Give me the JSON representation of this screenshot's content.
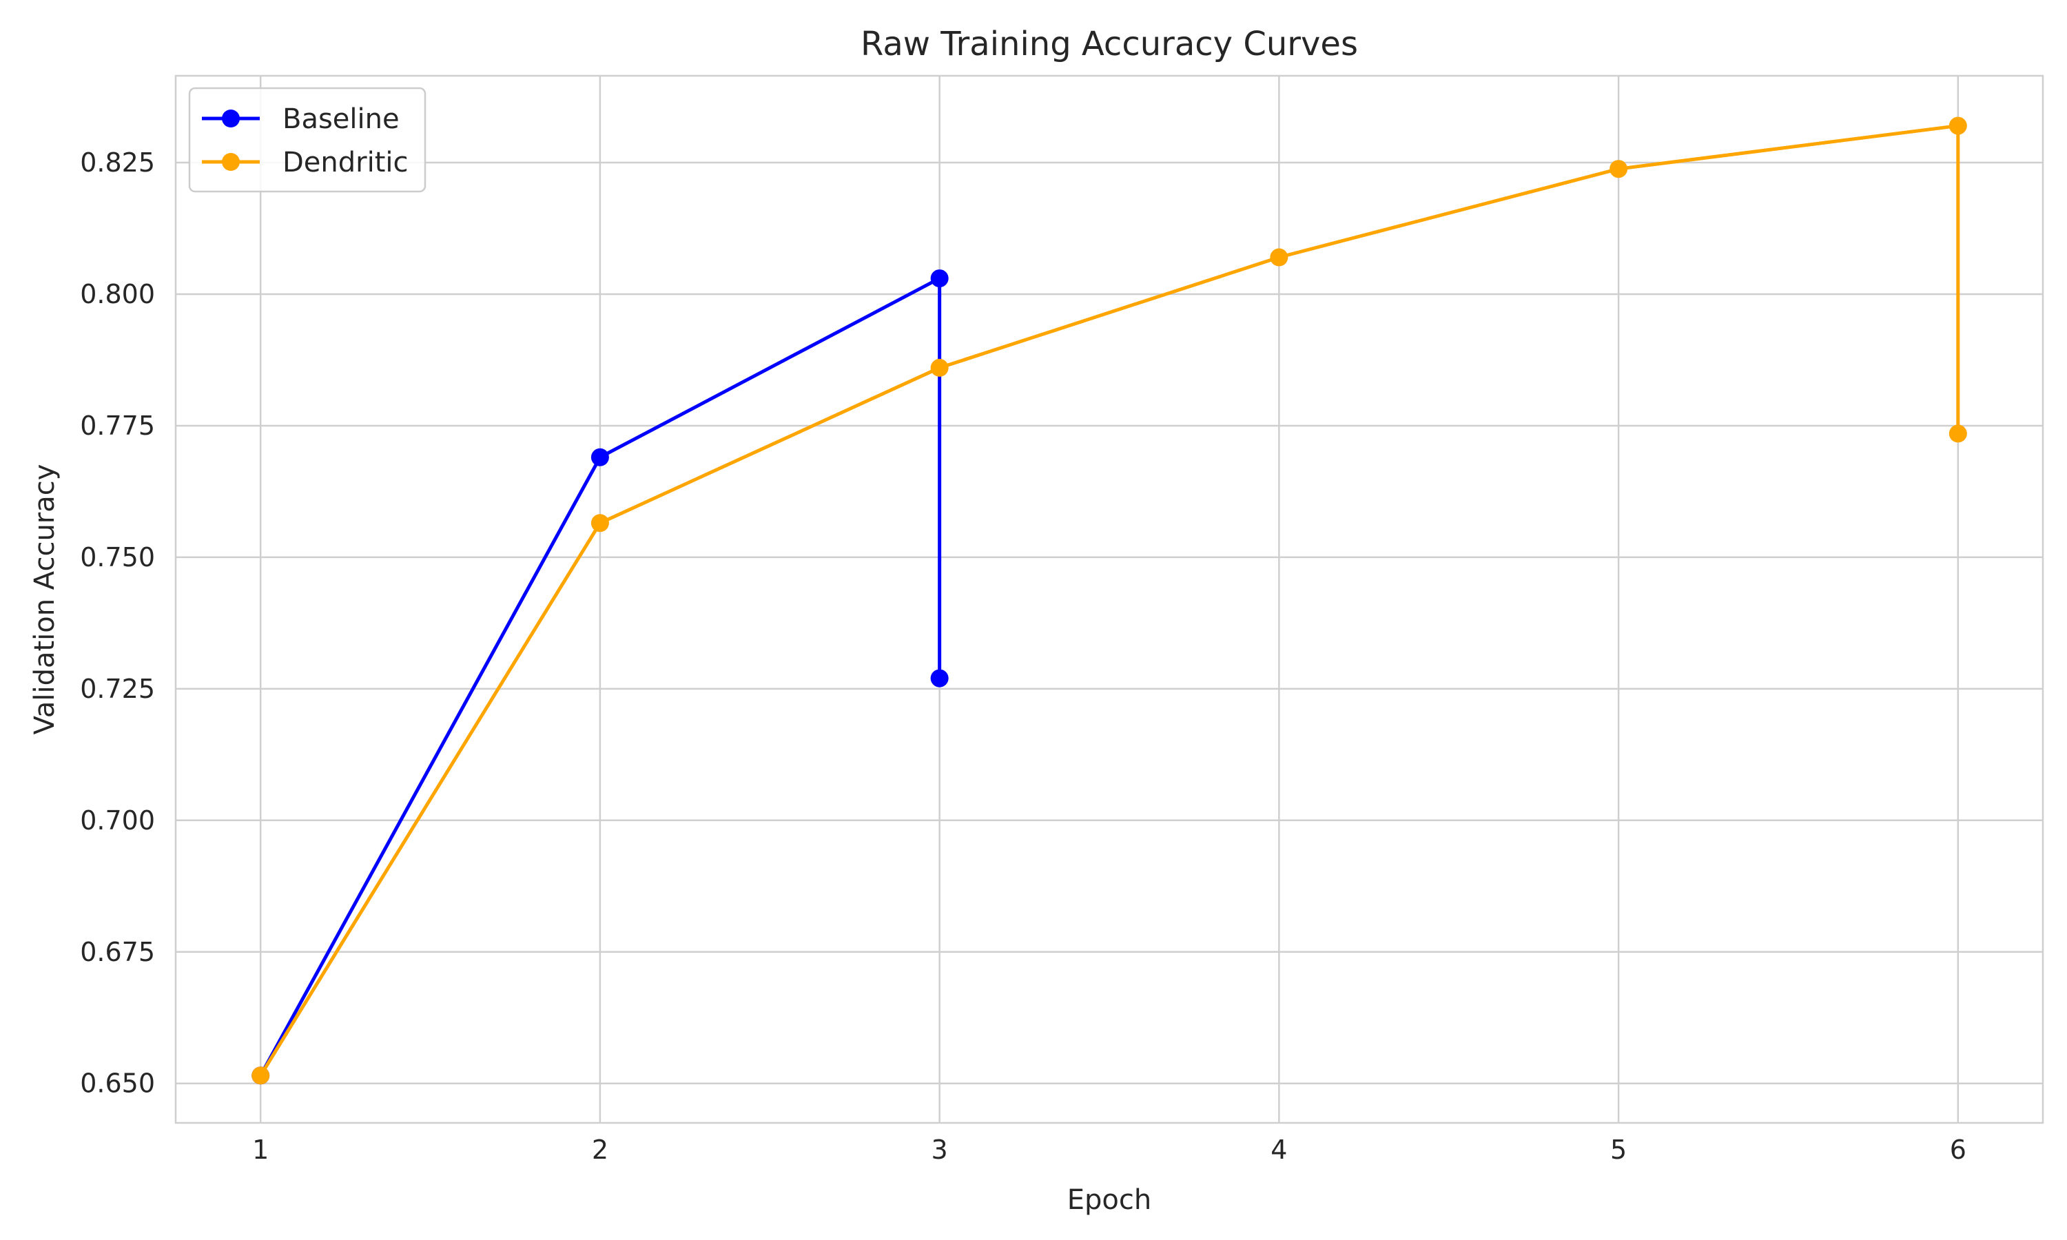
{
  "chart_data": {
    "type": "line",
    "title": "Raw Training Accuracy Curves",
    "xlabel": "Epoch",
    "ylabel": "Validation Accuracy",
    "xlim": [
      0.75,
      6.25
    ],
    "ylim": [
      0.6425,
      0.8415
    ],
    "x_ticks": [
      1,
      2,
      3,
      4,
      5,
      6
    ],
    "x_tick_labels": [
      "1",
      "2",
      "3",
      "4",
      "5",
      "6"
    ],
    "y_ticks": [
      0.65,
      0.675,
      0.7,
      0.725,
      0.75,
      0.775,
      0.8,
      0.825
    ],
    "y_tick_labels": [
      "0.650",
      "0.675",
      "0.700",
      "0.725",
      "0.750",
      "0.775",
      "0.800",
      "0.825"
    ],
    "grid": true,
    "legend_position": "top-left",
    "series": [
      {
        "name": "Baseline",
        "color": "#0000ff",
        "marker": "circle",
        "points": [
          {
            "x": 1,
            "y": 0.6515
          },
          {
            "x": 2,
            "y": 0.769
          },
          {
            "x": 3,
            "y": 0.803
          },
          {
            "x": 3,
            "y": 0.727
          }
        ]
      },
      {
        "name": "Dendritic",
        "color": "#ffa500",
        "marker": "circle",
        "points": [
          {
            "x": 1,
            "y": 0.6515
          },
          {
            "x": 2,
            "y": 0.7565
          },
          {
            "x": 3,
            "y": 0.786
          },
          {
            "x": 4,
            "y": 0.807
          },
          {
            "x": 5,
            "y": 0.8238
          },
          {
            "x": 6,
            "y": 0.832
          },
          {
            "x": 6,
            "y": 0.7735
          }
        ]
      }
    ]
  }
}
